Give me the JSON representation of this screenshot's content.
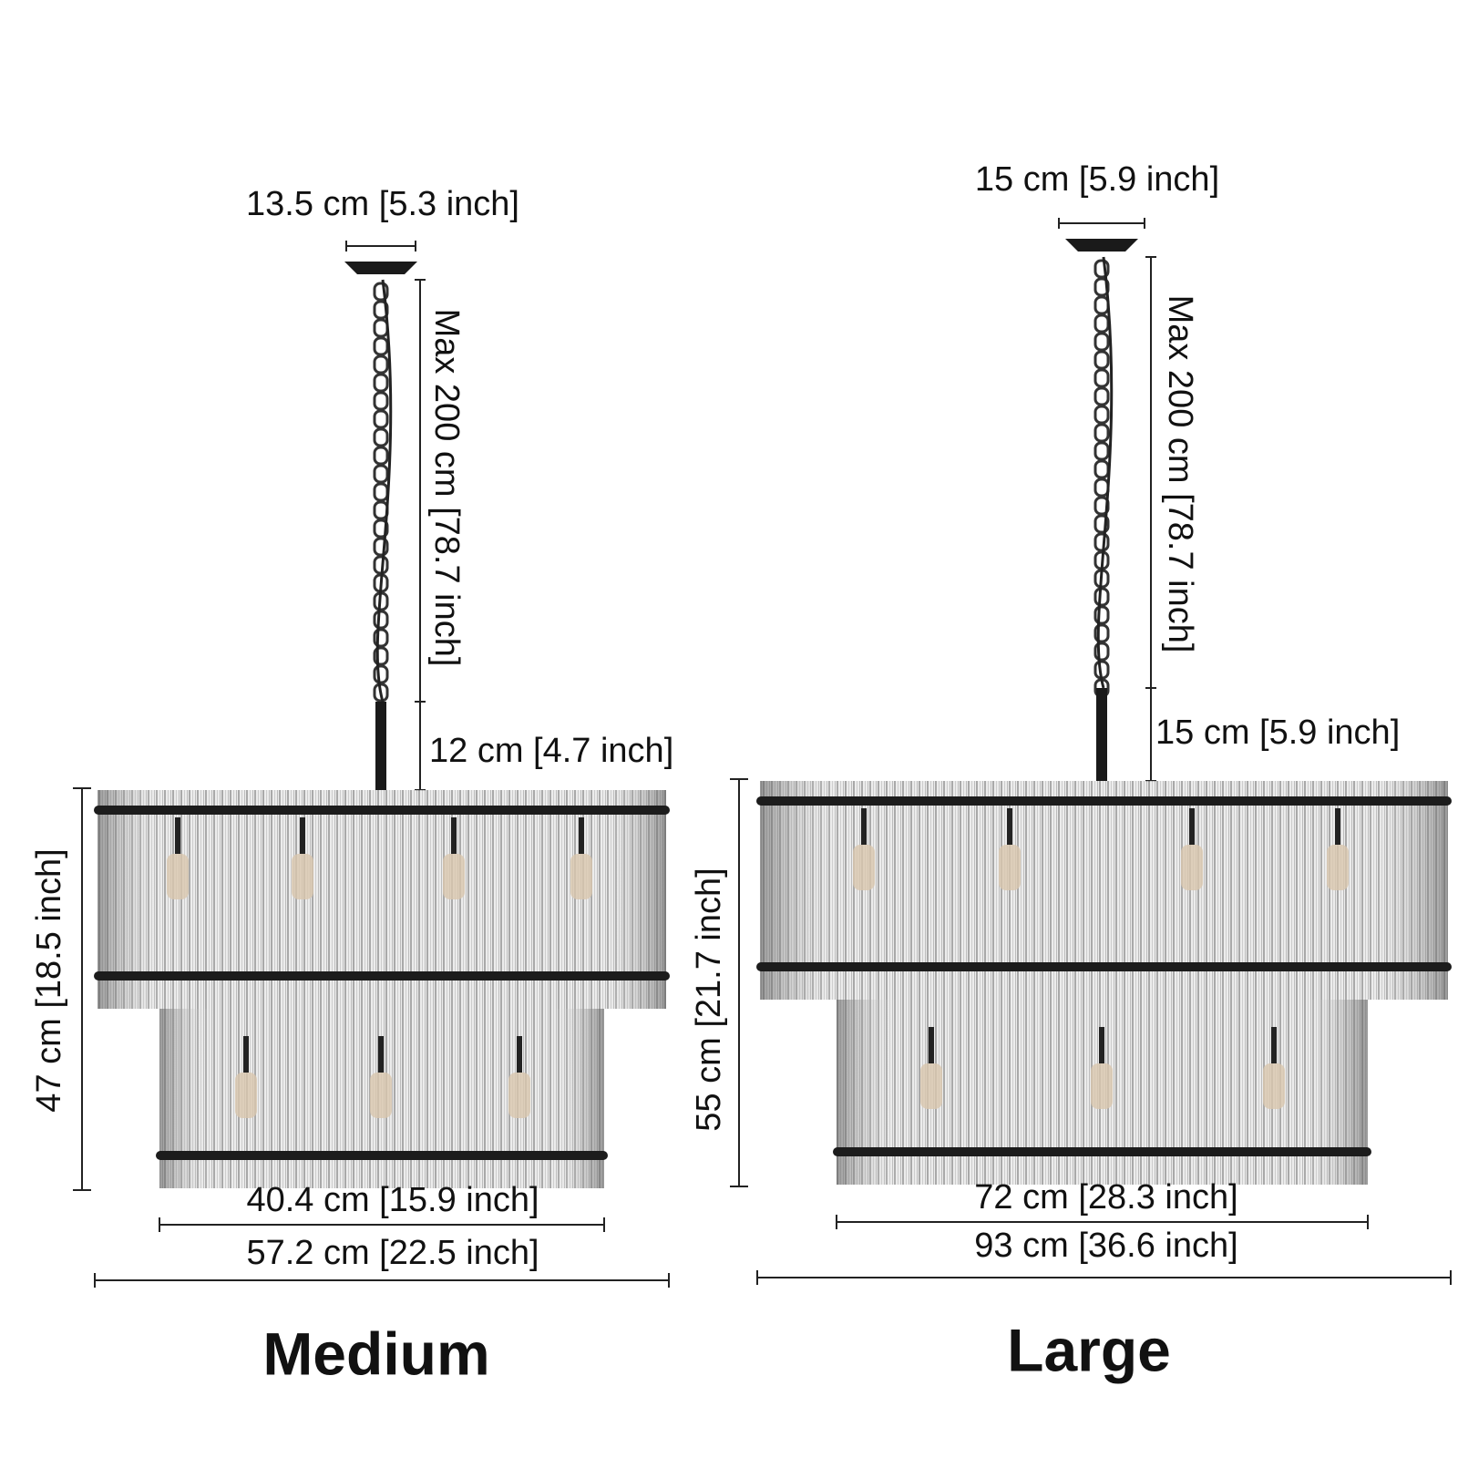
{
  "products": [
    {
      "label": "Medium",
      "canopy_width": "13.5 cm [5.3 inch]",
      "chain_length": "Max 200 cm [78.7 inch]",
      "rod_length": "12 cm [4.7 inch]",
      "height": "47 cm [18.5 inch]",
      "lower_diameter": "40.4 cm [15.9 inch]",
      "upper_diameter": "57.2 cm [22.5 inch]"
    },
    {
      "label": "Large",
      "canopy_width": "15 cm [5.9 inch]",
      "chain_length": "Max 200 cm [78.7 inch]",
      "rod_length": "15 cm [5.9 inch]",
      "height": "55 cm [21.7 inch]",
      "lower_diameter": "72 cm [28.3 inch]",
      "upper_diameter": "93 cm [36.6 inch]"
    }
  ]
}
